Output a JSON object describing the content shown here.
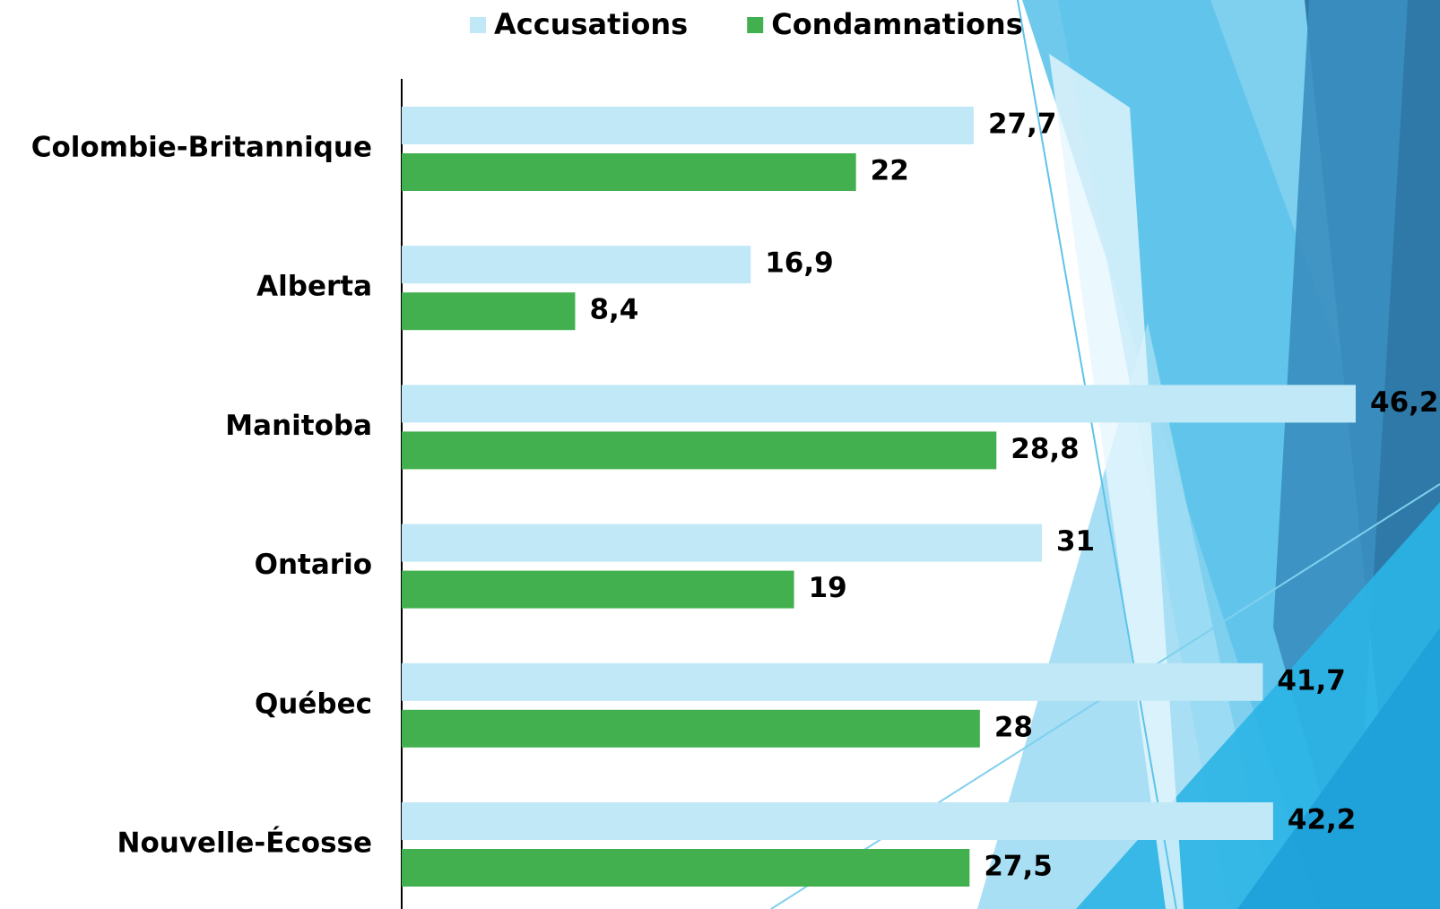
{
  "chart_data": {
    "type": "hbar",
    "categories": [
      "Colombie-Britannique",
      "Alberta",
      "Manitoba",
      "Ontario",
      "Québec",
      "Nouvelle-Écosse"
    ],
    "series": [
      {
        "name": "Accusations",
        "color": "#c0e8f7",
        "values": [
          27.7,
          16.9,
          46.2,
          31,
          41.7,
          42.2
        ],
        "value_labels": [
          "27,7",
          "16,9",
          "46,2",
          "31",
          "41,7",
          "42,2"
        ]
      },
      {
        "name": "Condamnations",
        "color": "#43b050",
        "values": [
          22,
          8.4,
          28.8,
          19,
          28,
          27.5
        ],
        "value_labels": [
          "22",
          "8,4",
          "28,8",
          "19",
          "28",
          "27,5"
        ]
      }
    ],
    "legend": "top"
  }
}
